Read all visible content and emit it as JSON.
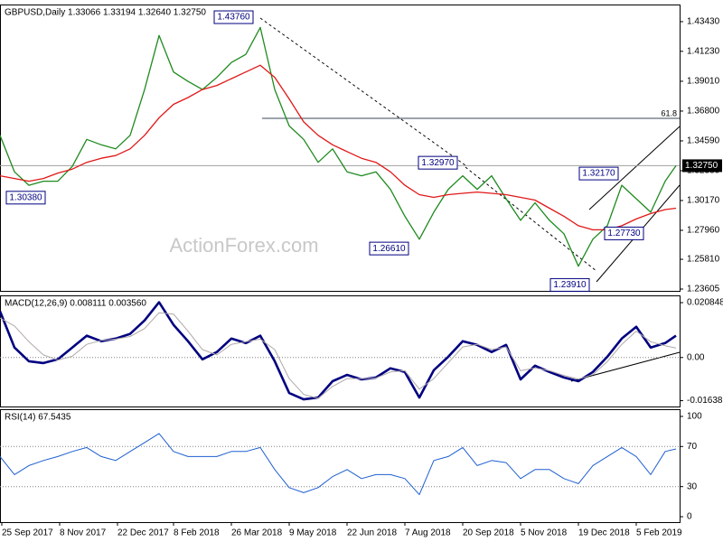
{
  "chart_data": [
    {
      "type": "line",
      "title": "GBPUSD,Daily 1.33066 1.33194 1.32640 1.32750",
      "watermark": "ActionForex.com",
      "x": [
        0,
        8,
        16,
        24,
        32,
        40,
        48,
        56,
        64,
        72,
        80,
        88,
        96,
        104,
        112,
        120,
        128,
        136,
        144,
        152,
        160,
        168,
        176,
        184,
        192,
        200,
        208,
        216,
        224,
        232,
        240,
        248,
        256,
        264,
        272,
        280,
        288,
        296,
        304,
        312,
        320,
        328,
        336,
        344,
        352,
        360,
        368,
        374
      ],
      "xlim": [
        0,
        376
      ],
      "ylim": [
        1.2347,
        1.447
      ],
      "grid": false,
      "yticks": [
        {
          "value": 1.4343,
          "label": "1.43430"
        },
        {
          "value": 1.4123,
          "label": "1.41230"
        },
        {
          "value": 1.3901,
          "label": "1.39010"
        },
        {
          "value": 1.368,
          "label": "1.36800"
        },
        {
          "value": 1.3459,
          "label": "1.34590"
        },
        {
          "value": 1.3238,
          "label": "1.32380"
        },
        {
          "value": 1.3017,
          "label": "1.30170"
        },
        {
          "value": 1.2796,
          "label": "1.27960"
        },
        {
          "value": 1.2581,
          "label": "1.25810"
        },
        {
          "value": 1.23605,
          "label": "1.23605"
        }
      ],
      "series": [
        {
          "name": "GBPUSD",
          "color": "#1f8a1f",
          "width": 1.3,
          "values": [
            1.35,
            1.323,
            1.313,
            1.316,
            1.316,
            1.327,
            1.347,
            1.343,
            1.34,
            1.35,
            1.384,
            1.424,
            1.397,
            1.39,
            1.384,
            1.393,
            1.404,
            1.41,
            1.43,
            1.384,
            1.357,
            1.347,
            1.33,
            1.34,
            1.323,
            1.32,
            1.323,
            1.31,
            1.29,
            1.273,
            1.293,
            1.31,
            1.32,
            1.31,
            1.32,
            1.303,
            1.287,
            1.3,
            1.287,
            1.277,
            1.253,
            1.273,
            1.283,
            1.313,
            1.303,
            1.293,
            1.316,
            1.3275
          ]
        },
        {
          "name": "MA",
          "color": "#e01818",
          "width": 1.3,
          "values": [
            1.32,
            1.318,
            1.316,
            1.318,
            1.322,
            1.325,
            1.33,
            1.333,
            1.335,
            1.34,
            1.35,
            1.363,
            1.373,
            1.378,
            1.384,
            1.387,
            1.392,
            1.397,
            1.402,
            1.393,
            1.377,
            1.36,
            1.35,
            1.343,
            1.338,
            1.333,
            1.33,
            1.323,
            1.313,
            1.306,
            1.304,
            1.306,
            1.307,
            1.308,
            1.307,
            1.306,
            1.304,
            1.302,
            1.296,
            1.29,
            1.283,
            1.28,
            1.28,
            1.283,
            1.288,
            1.292,
            1.295,
            1.296
          ]
        }
      ],
      "annotations": [
        {
          "x": 140,
          "value": 1.4376,
          "label": "1.43760"
        },
        {
          "x": 25,
          "value": 1.3038,
          "label": "1.30380"
        },
        {
          "x": 226,
          "value": 1.2661,
          "label": "1.26610"
        },
        {
          "x": 253,
          "value": 1.3297,
          "label": "1.32970"
        },
        {
          "x": 326,
          "value": 1.2391,
          "label": "1.23910"
        },
        {
          "x": 342,
          "value": 1.3217,
          "label": "1.32170"
        },
        {
          "x": 356,
          "value": 1.2773,
          "label": "1.27730"
        }
      ],
      "fib_level": {
        "ratio": 61.8,
        "price": 1.3626,
        "from_x": 145
      },
      "last_price": {
        "value": 1.3275,
        "label": "1.32750"
      }
    },
    {
      "type": "line",
      "title": "MACD(12,26,9) 0.008111 0.003560",
      "x": [
        0,
        8,
        16,
        24,
        32,
        40,
        48,
        56,
        64,
        72,
        80,
        88,
        96,
        104,
        112,
        120,
        128,
        136,
        144,
        152,
        160,
        168,
        176,
        184,
        192,
        200,
        208,
        216,
        224,
        232,
        240,
        248,
        256,
        264,
        272,
        280,
        288,
        296,
        304,
        312,
        320,
        328,
        336,
        344,
        352,
        360,
        368,
        374
      ],
      "xlim": [
        0,
        376
      ],
      "ylim": [
        -0.0186,
        0.0236
      ],
      "grid": "inner",
      "yticks": [
        0.020848,
        {
          "value": 0,
          "label": "0.00"
        },
        -0.016389
      ],
      "series": [
        {
          "name": "MACD",
          "color": "#000080",
          "width": 2.6,
          "values": [
            0.0176,
            0.0038,
            -0.0014,
            -0.0021,
            -0.0007,
            0.0038,
            0.0083,
            0.0062,
            0.0072,
            0.009,
            0.0141,
            0.021,
            0.0124,
            0.0062,
            -0.0007,
            0.0021,
            0.0072,
            0.0055,
            0.0083,
            -0.0014,
            -0.0135,
            -0.0159,
            -0.0152,
            -0.009,
            -0.0066,
            -0.0083,
            -0.0076,
            -0.0041,
            -0.0055,
            -0.0152,
            -0.0048,
            0.0003,
            0.0062,
            0.0048,
            0.0021,
            0.0048,
            -0.0083,
            -0.0031,
            -0.0055,
            -0.0076,
            -0.009,
            -0.0055,
            0.0003,
            0.0072,
            0.0117,
            0.0038,
            0.0055,
            0.0083
          ]
        },
        {
          "name": "Signal",
          "color": "#b0a8a8",
          "width": 1,
          "values": [
            0.015,
            0.012,
            0.006,
            0.001,
            -0.001,
            0.0005,
            0.005,
            0.0065,
            0.007,
            0.008,
            0.011,
            0.017,
            0.0165,
            0.01,
            0.003,
            0.001,
            0.005,
            0.006,
            0.007,
            0.003,
            -0.008,
            -0.014,
            -0.0155,
            -0.011,
            -0.008,
            -0.008,
            -0.0078,
            -0.0055,
            -0.005,
            -0.012,
            -0.008,
            -0.002,
            0.004,
            0.005,
            0.003,
            0.004,
            -0.005,
            -0.004,
            -0.005,
            -0.0068,
            -0.0082,
            -0.0065,
            -0.0015,
            0.005,
            0.01,
            0.006,
            0.0045,
            0.0036
          ]
        }
      ]
    },
    {
      "type": "line",
      "title": "RSI(14) 67.5435",
      "x": [
        0,
        8,
        16,
        24,
        32,
        40,
        48,
        56,
        64,
        72,
        80,
        88,
        96,
        104,
        112,
        120,
        128,
        136,
        144,
        152,
        160,
        168,
        176,
        184,
        192,
        200,
        208,
        216,
        224,
        232,
        240,
        248,
        256,
        264,
        272,
        280,
        288,
        296,
        304,
        312,
        320,
        328,
        336,
        344,
        352,
        360,
        368,
        374
      ],
      "xlim": [
        0,
        376
      ],
      "ylim": [
        -5.4,
        107.2
      ],
      "grid": "inner",
      "yticks": [
        100,
        70,
        30,
        0
      ],
      "xticks": [
        {
          "value": 1,
          "label": "25 Sep 2017"
        },
        {
          "value": 33,
          "label": "8 Nov 2017"
        },
        {
          "value": 65,
          "label": "22 Dec 2017"
        },
        {
          "value": 96,
          "label": "8 Feb 2018"
        },
        {
          "value": 128,
          "label": "26 Mar 2018"
        },
        {
          "value": 160,
          "label": "9 May 2018"
        },
        {
          "value": 192,
          "label": "22 Jun 2018"
        },
        {
          "value": 224,
          "label": "7 Aug 2018"
        },
        {
          "value": 256,
          "label": "20 Sep 2018"
        },
        {
          "value": 288,
          "label": "5 Nov 2018"
        },
        {
          "value": 320,
          "label": "19 Dec 2018"
        },
        {
          "value": 352,
          "label": "5 Feb 2019"
        }
      ],
      "series": [
        {
          "name": "RSI",
          "color": "#1e5fd0",
          "width": 1,
          "values": [
            60,
            42,
            51,
            56,
            60,
            65,
            69,
            60,
            56,
            65,
            74,
            83,
            65,
            60,
            60,
            60,
            65,
            65,
            69,
            47,
            29,
            24,
            29,
            40,
            47,
            38,
            42,
            42,
            38,
            22,
            56,
            60,
            69,
            51,
            56,
            54,
            38,
            47,
            47,
            38,
            33,
            51,
            60,
            69,
            60,
            42,
            65,
            67.5435
          ]
        }
      ]
    }
  ]
}
